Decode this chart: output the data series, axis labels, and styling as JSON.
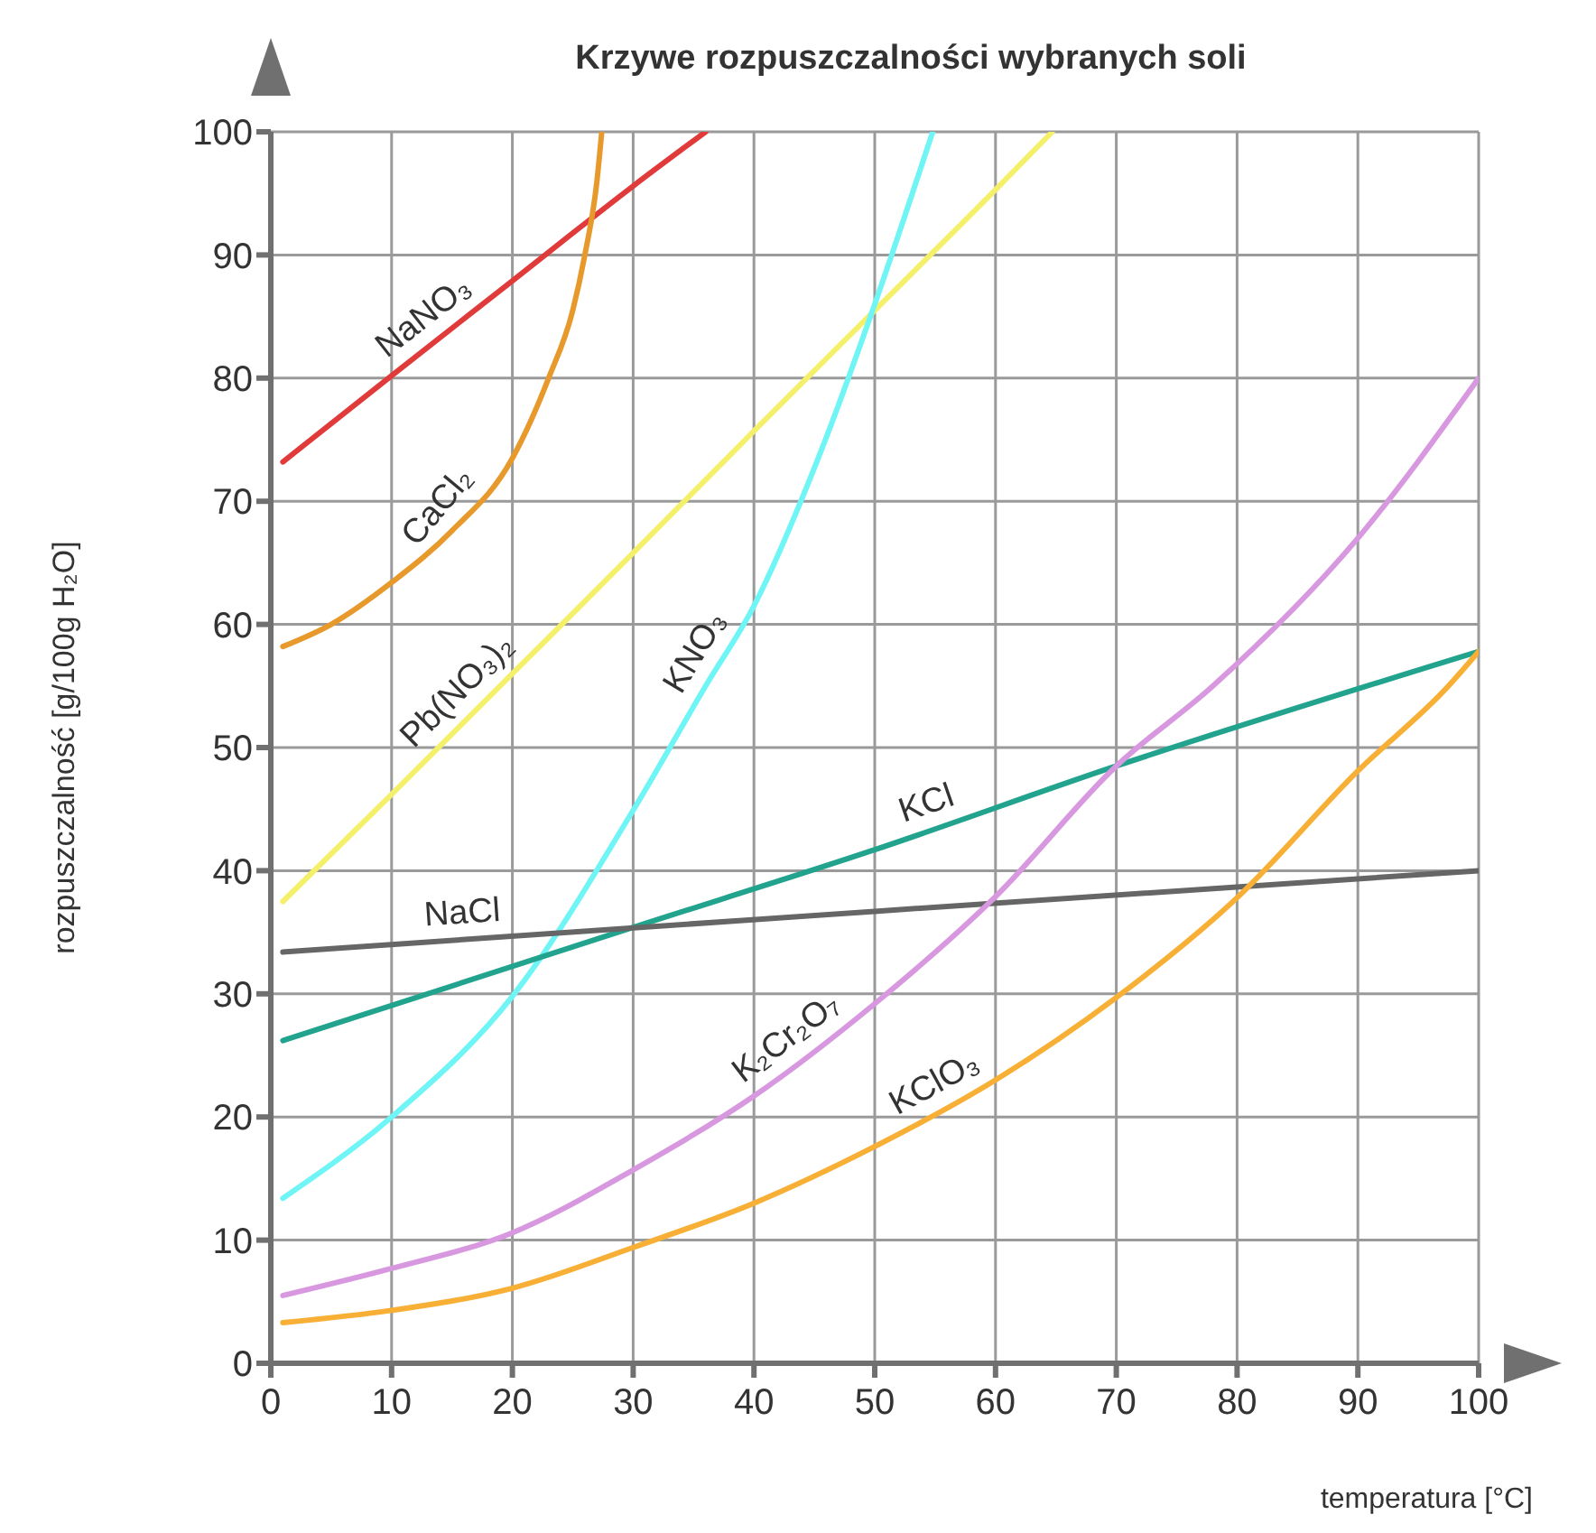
{
  "chart_data": {
    "type": "line",
    "title": "Krzywe rozpuszczalności wybranych soli",
    "xlabel": "temperatura [°C]",
    "ylabel": "rozpuszczalność [g/100g H₂O]",
    "xlim": [
      0,
      100
    ],
    "xticks": [
      0,
      10,
      20,
      30,
      40,
      50,
      60,
      70,
      80,
      90,
      100
    ],
    "ylim": [
      0,
      100
    ],
    "yticks": [
      0,
      10,
      20,
      30,
      40,
      50,
      60,
      70,
      80,
      90,
      100
    ],
    "grid": true,
    "series": [
      {
        "name": "NaNO₃",
        "color": "#e03a3a",
        "x": [
          1,
          10,
          20,
          30,
          36
        ],
        "values": [
          73.2,
          80.2,
          87.9,
          95.6,
          100
        ]
      },
      {
        "name": "CaCl₂",
        "color": "#e8992c",
        "x": [
          1,
          5,
          10,
          15,
          20,
          23,
          25,
          26,
          27,
          27.4
        ],
        "values": [
          58.2,
          60,
          63.4,
          67.6,
          73.5,
          80,
          85.5,
          90,
          96,
          100
        ]
      },
      {
        "name": "Pb(NO₃)₂",
        "color": "#f5f06a",
        "x": [
          1,
          10,
          20,
          30,
          40,
          50,
          60,
          64.7
        ],
        "values": [
          37.5,
          46.2,
          56,
          65.8,
          75.7,
          85.5,
          95.3,
          100
        ]
      },
      {
        "name": "KNO₃",
        "color": "#6ff5f5",
        "x": [
          1,
          10,
          20,
          30,
          36,
          40,
          45,
          50,
          54.8
        ],
        "values": [
          13.4,
          20,
          29.8,
          44.9,
          55,
          61.5,
          72.7,
          86,
          100
        ]
      },
      {
        "name": "KCl",
        "color": "#22a38e",
        "x": [
          1,
          30,
          50,
          70,
          100
        ],
        "values": [
          26.2,
          35.4,
          41.7,
          48.5,
          57.8
        ]
      },
      {
        "name": "NaCl",
        "color": "#666666",
        "x": [
          1,
          50,
          100
        ],
        "values": [
          33.4,
          36.7,
          40
        ]
      },
      {
        "name": "K₂Cr₂O₇",
        "color": "#d898e0",
        "x": [
          1,
          10,
          20,
          30,
          40,
          50,
          60,
          70,
          78,
          90,
          100
        ],
        "values": [
          5.5,
          7.7,
          10.6,
          15.7,
          21.7,
          29.2,
          37.9,
          48.5,
          55,
          67,
          80
        ]
      },
      {
        "name": "KClO₃",
        "color": "#f7b035",
        "x": [
          1,
          10,
          20,
          30,
          40,
          50,
          60,
          70,
          80,
          90,
          97.5,
          100
        ],
        "values": [
          3.3,
          4.3,
          6.1,
          9.4,
          13,
          17.6,
          23,
          29.7,
          37.8,
          48.1,
          55,
          57.8
        ]
      }
    ]
  }
}
